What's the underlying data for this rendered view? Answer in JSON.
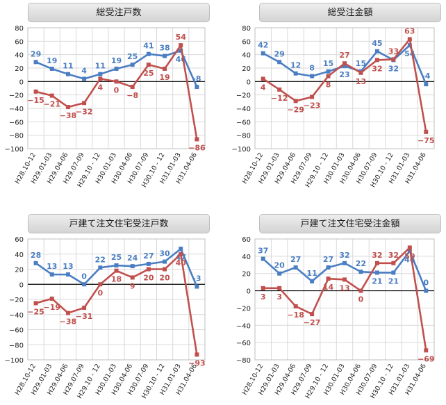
{
  "colors": {
    "series_a": "#4a7ec2",
    "series_b": "#c0504d",
    "grid": "#d9d9d9",
    "axis": "#000000"
  },
  "chart_data": [
    {
      "type": "line",
      "title": "総受注戸数",
      "categories": [
        "H28.10-12",
        "H29.01-03",
        "H29.04-06",
        "H29.07-09",
        "H29.10 - 12",
        "H30.01-03",
        "H30.04-06",
        "H30.07-09",
        "H30.10 - 12",
        "H31.01-03",
        "H31.04-06"
      ],
      "ylim": [
        -100,
        80
      ],
      "yticks": [
        80,
        60,
        40,
        20,
        0,
        -20,
        -40,
        -60,
        -80,
        -100
      ],
      "grid": true,
      "series": [
        {
          "values": [
            29,
            19,
            11,
            4,
            11,
            19,
            25,
            41,
            38,
            46,
            -8
          ],
          "labels": [
            "29",
            "19",
            "11",
            "4",
            "11",
            "19",
            "25",
            "41",
            "38",
            "46",
            "-8"
          ]
        },
        {
          "values": [
            -15,
            -21,
            -38,
            -32,
            4,
            0,
            -8,
            25,
            19,
            54,
            -86
          ],
          "labels": [
            "−15",
            "−21",
            "−38",
            "−32",
            "4",
            "0",
            "−8",
            "25",
            "19",
            "54",
            "−86"
          ]
        }
      ]
    },
    {
      "type": "line",
      "title": "総受注金額",
      "categories": [
        "H28.10-12",
        "H29.01-03",
        "H29.04-06",
        "H29.07-09",
        "H29.10 - 12",
        "H30.01-03",
        "H30.04-06",
        "H30.07-09",
        "H30.10 - 12",
        "H31.01-03",
        "H31.04-06"
      ],
      "ylim": [
        -100,
        80
      ],
      "yticks": [
        80,
        60,
        40,
        20,
        0,
        -20,
        -40,
        -60,
        -80,
        -100
      ],
      "grid": true,
      "series": [
        {
          "values": [
            42,
            29,
            12,
            8,
            15,
            23,
            15,
            45,
            32,
            54,
            -4
          ],
          "labels": [
            "42",
            "29",
            "12",
            "8",
            "15",
            "23",
            "15",
            "45",
            "32",
            "54",
            "-4"
          ]
        },
        {
          "values": [
            4,
            -12,
            -29,
            -23,
            8,
            27,
            13,
            32,
            33,
            63,
            -75
          ],
          "labels": [
            "4",
            "−12",
            "−29",
            "−23",
            "8",
            "27",
            "13",
            "32",
            "33",
            "63",
            "−75"
          ]
        }
      ]
    },
    {
      "type": "line",
      "title": "戸建て注文住宅受注戸数",
      "categories": [
        "H28.10-12",
        "H29.01-03",
        "H29.04-06",
        "H29.07-09",
        "H29.10 - 12",
        "H30.01-03",
        "H30.04-06",
        "H30.07-09",
        "H30.10 - 12",
        "H31.01-03",
        "H31.04-06"
      ],
      "ylim": [
        -100,
        60
      ],
      "yticks": [
        60,
        40,
        20,
        0,
        -20,
        -40,
        -60,
        -80,
        -100
      ],
      "grid": true,
      "series": [
        {
          "values": [
            28,
            13,
            13,
            0,
            22,
            25,
            24,
            27,
            30,
            47,
            -3
          ],
          "labels": [
            "28",
            "13",
            "13",
            "0",
            "22",
            "25",
            "24",
            "27",
            "30",
            "47",
            "-3"
          ]
        },
        {
          "values": [
            -25,
            -19,
            -38,
            -31,
            0,
            18,
            9,
            20,
            20,
            40,
            -93
          ],
          "labels": [
            "−25",
            "−19",
            "−38",
            "−31",
            "0",
            "18",
            "9",
            "20",
            "20",
            "40",
            "−93"
          ]
        }
      ]
    },
    {
      "type": "line",
      "title": "戸建て注文住宅受注金額",
      "categories": [
        "H28.10-12",
        "H29.01-03",
        "H29.04-06",
        "H29.07-09",
        "H29.10 - 12",
        "H30.01-03",
        "H30.04-06",
        "H30.07-09",
        "H30.10 - 12",
        "H31.01-03",
        "H31.04-06"
      ],
      "ylim": [
        -80,
        60
      ],
      "yticks": [
        60,
        40,
        20,
        0,
        -20,
        -40,
        -60,
        -80
      ],
      "grid": true,
      "series": [
        {
          "values": [
            37,
            20,
            27,
            11,
            27,
            32,
            22,
            21,
            21,
            46,
            0
          ],
          "labels": [
            "37",
            "20",
            "27",
            "11",
            "27",
            "32",
            "22",
            "21",
            "21",
            "46",
            "0"
          ]
        },
        {
          "values": [
            3,
            3,
            -18,
            -27,
            14,
            13,
            0,
            32,
            32,
            50,
            -69
          ],
          "labels": [
            "3",
            "3",
            "−18",
            "−27",
            "14",
            "13",
            "0",
            "32",
            "32",
            "50",
            "−69"
          ]
        }
      ]
    }
  ]
}
